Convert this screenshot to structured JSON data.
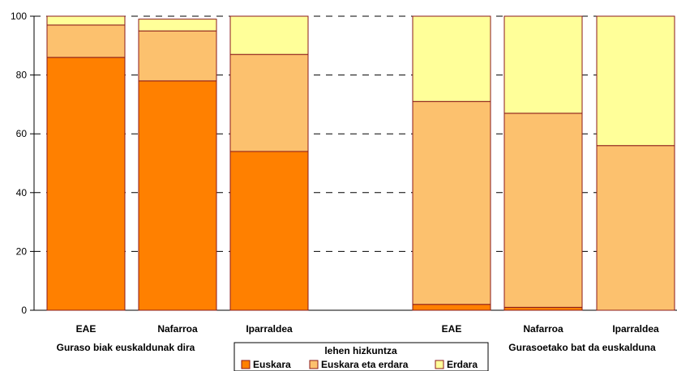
{
  "chart_data": {
    "type": "bar",
    "stacked": true,
    "ylim": [
      0,
      100
    ],
    "yticks": [
      0,
      20,
      40,
      60,
      80,
      100
    ],
    "grid": "dashed horizontal",
    "groups": [
      {
        "label": "Guraso biak euskaldunak dira",
        "categories": [
          "EAE",
          "Nafarroa",
          "Iparraldea"
        ]
      },
      {
        "label": "Gurasoetako bat da euskalduna",
        "categories": [
          "EAE",
          "Nafarroa",
          "Iparraldea"
        ]
      }
    ],
    "series": [
      {
        "name": "Euskara",
        "color": "#ff8000",
        "values": [
          86,
          78,
          54,
          2,
          1,
          0
        ]
      },
      {
        "name": "Euskara eta erdara",
        "color": "#fcc16e",
        "values": [
          11,
          17,
          33,
          69,
          66,
          56
        ]
      },
      {
        "name": "Erdara",
        "color": "#ffff99",
        "values": [
          3,
          4,
          13,
          29,
          33,
          44
        ]
      }
    ],
    "legend": {
      "title": "lehen hizkuntza",
      "placement": "bottom-center"
    },
    "bar_outline_color": "#8b1a1a"
  }
}
